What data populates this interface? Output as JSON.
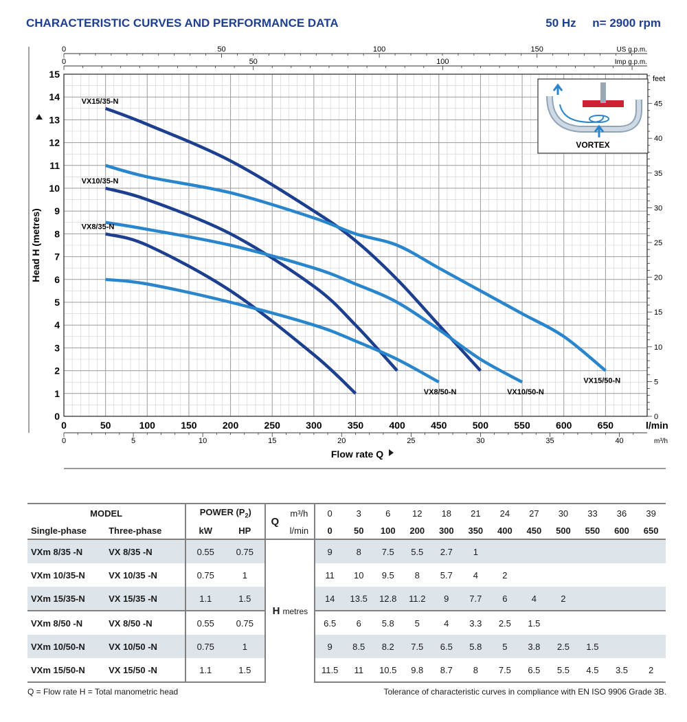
{
  "header": {
    "title": "CHARACTERISTIC CURVES AND PERFORMANCE DATA",
    "frequency": "50 Hz",
    "speed": "n= 2900 rpm"
  },
  "chart_data": {
    "type": "line",
    "ylabel": "Head H  (metres)",
    "xlabel": "Flow rate  Q",
    "x_unit": "l/min",
    "x_ticks_lmin": [
      0,
      50,
      100,
      150,
      200,
      250,
      300,
      350,
      400,
      450,
      500,
      550,
      600,
      650
    ],
    "x_unit_m3h": "m³/h",
    "x_ticks_m3h": [
      0,
      5,
      10,
      15,
      20,
      25,
      30,
      35,
      40
    ],
    "x_unit_usgpm": "US g.p.m.",
    "x_ticks_usgpm": [
      0,
      50,
      100,
      150
    ],
    "x_unit_impgpm": "Imp g.p.m.",
    "x_ticks_impgpm": [
      0,
      50,
      100
    ],
    "y_unit_right": "feet",
    "y_ticks_feet": [
      0,
      5,
      10,
      15,
      20,
      25,
      30,
      35,
      40,
      45
    ],
    "y_ticks_m": [
      0,
      1,
      2,
      3,
      4,
      5,
      6,
      7,
      8,
      9,
      10,
      11,
      12,
      13,
      14,
      15
    ],
    "xlim": [
      0,
      700
    ],
    "ylim": [
      0,
      15
    ],
    "grid": true,
    "inset_label": "VORTEX",
    "series": [
      {
        "name": "VX8/35-N",
        "x": [
          50,
          100,
          200,
          300,
          350
        ],
        "y": [
          8,
          7.5,
          5.5,
          2.7,
          1
        ],
        "color": "#1d3f8f"
      },
      {
        "name": "VX10/35-N",
        "x": [
          50,
          100,
          200,
          300,
          350,
          400
        ],
        "y": [
          10,
          9.5,
          8,
          5.7,
          4,
          2
        ],
        "color": "#1d3f8f"
      },
      {
        "name": "VX15/35-N",
        "x": [
          50,
          100,
          200,
          300,
          350,
          400,
          450,
          500
        ],
        "y": [
          13.5,
          12.8,
          11.2,
          9,
          7.7,
          6,
          4,
          2
        ],
        "color": "#1d3f8f"
      },
      {
        "name": "VX8/50-N",
        "x": [
          50,
          100,
          200,
          300,
          350,
          400,
          450
        ],
        "y": [
          6,
          5.8,
          5,
          4,
          3.3,
          2.5,
          1.5
        ],
        "color": "#2a86cc"
      },
      {
        "name": "VX10/50-N",
        "x": [
          50,
          100,
          200,
          300,
          350,
          400,
          450,
          500,
          550
        ],
        "y": [
          8.5,
          8.2,
          7.5,
          6.5,
          5.8,
          5,
          3.8,
          2.5,
          1.5
        ],
        "color": "#2a86cc"
      },
      {
        "name": "VX15/50-N",
        "x": [
          50,
          100,
          200,
          300,
          350,
          400,
          450,
          500,
          550,
          600,
          650
        ],
        "y": [
          11,
          10.5,
          9.8,
          8.7,
          8,
          7.5,
          6.5,
          5.5,
          4.5,
          3.5,
          2
        ],
        "color": "#2a86cc"
      }
    ]
  },
  "table": {
    "model_header": "MODEL",
    "single_phase_header": "Single-phase",
    "three_phase_header": "Three-phase",
    "power_header": "POWER (P2)",
    "kw_header": "kW",
    "hp_header": "HP",
    "q_label": "Q",
    "m3h_label": "m³/h",
    "lmin_label": "l/min",
    "h_label": "H",
    "metres_label": "metres",
    "m3h_values": [
      "0",
      "3",
      "6",
      "12",
      "18",
      "21",
      "24",
      "27",
      "30",
      "33",
      "36",
      "39"
    ],
    "lmin_values": [
      "0",
      "50",
      "100",
      "200",
      "300",
      "350",
      "400",
      "450",
      "500",
      "550",
      "600",
      "650"
    ],
    "rows": [
      {
        "single": "VXm 8/35  -N",
        "three": "VX 8/35   -N",
        "kw": "0.55",
        "hp": "0.75",
        "h": [
          "9",
          "8",
          "7.5",
          "5.5",
          "2.7",
          "1",
          "",
          "",
          "",
          "",
          "",
          ""
        ]
      },
      {
        "single": "VXm 10/35-N",
        "three": "VX 10/35 -N",
        "kw": "0.75",
        "hp": "1",
        "h": [
          "11",
          "10",
          "9.5",
          "8",
          "5.7",
          "4",
          "2",
          "",
          "",
          "",
          "",
          ""
        ]
      },
      {
        "single": "VXm 15/35-N",
        "three": "VX 15/35 -N",
        "kw": "1.1",
        "hp": "1.5",
        "h": [
          "14",
          "13.5",
          "12.8",
          "11.2",
          "9",
          "7.7",
          "6",
          "4",
          "2",
          "",
          "",
          ""
        ]
      },
      {
        "single": "VXm 8/50  -N",
        "three": "VX 8/50   -N",
        "kw": "0.55",
        "hp": "0.75",
        "h": [
          "6.5",
          "6",
          "5.8",
          "5",
          "4",
          "3.3",
          "2.5",
          "1.5",
          "",
          "",
          "",
          ""
        ]
      },
      {
        "single": "VXm 10/50-N",
        "three": "VX 10/50 -N",
        "kw": "0.75",
        "hp": "1",
        "h": [
          "9",
          "8.5",
          "8.2",
          "7.5",
          "6.5",
          "5.8",
          "5",
          "3.8",
          "2.5",
          "1.5",
          "",
          ""
        ]
      },
      {
        "single": "VXm 15/50-N",
        "three": "VX 15/50 -N",
        "kw": "1.1",
        "hp": "1.5",
        "h": [
          "11.5",
          "11",
          "10.5",
          "9.8",
          "8.7",
          "8",
          "7.5",
          "6.5",
          "5.5",
          "4.5",
          "3.5",
          "2"
        ]
      }
    ]
  },
  "footer": {
    "legend": "Q = Flow rate   H = Total manometric head",
    "tolerance": "Tolerance of characteristic curves in compliance with EN ISO 9906 Grade 3B."
  }
}
